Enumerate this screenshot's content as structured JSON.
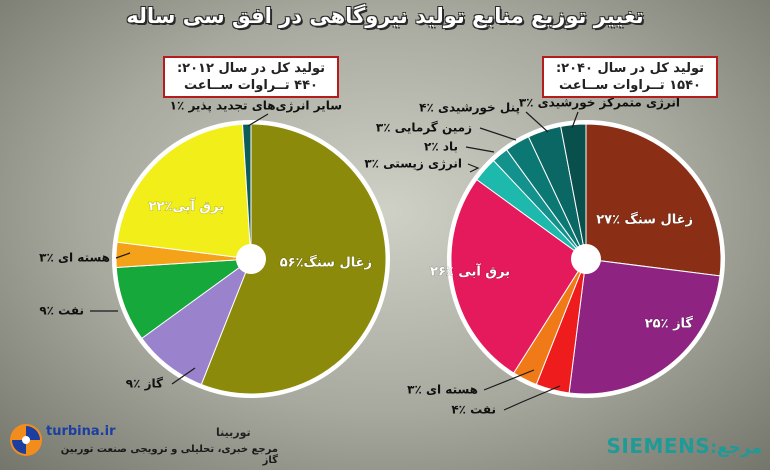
{
  "title": "تغییر توزیع منابع تولید نیروگاهی در افق سی ساله",
  "left_box": {
    "line1": "تولید کل در سال ۲۰۱۲:",
    "line2": "۴۴۰ تــراوات ســاعت"
  },
  "right_box": {
    "line1": "تولید کل در سال ۲۰۴۰:",
    "line2": "۱۵۴۰ تــراوات ســاعت"
  },
  "chart_data": [
    {
      "type": "pie",
      "year": "2012",
      "slices": [
        {
          "label": "زغال سنگ٪۵۶",
          "value": 56,
          "color": "#8c8a0b"
        },
        {
          "label": "گاز ٪۹",
          "value": 9,
          "color": "#9a82cc"
        },
        {
          "label": "نفت ٪۹",
          "value": 9,
          "color": "#16a83a"
        },
        {
          "label": "هسته ای ٪۳",
          "value": 3,
          "color": "#f5a21b"
        },
        {
          "label": "برق آبی٪۲۲",
          "value": 22,
          "color": "#f2ee1a"
        },
        {
          "label": "سایر انرژی‌های تجدید پذیر ٪۱",
          "value": 1,
          "color": "#0c5d5a"
        }
      ]
    },
    {
      "type": "pie",
      "year": "2040",
      "slices": [
        {
          "label": "زغال سنگ ٪۲۷",
          "value": 27,
          "color": "#8a2f16"
        },
        {
          "label": "گاز ٪۲۵",
          "value": 25,
          "color": "#8e2382"
        },
        {
          "label": "نفت ٪۴",
          "value": 4,
          "color": "#ee1c1c"
        },
        {
          "label": "هسته ای ٪۳",
          "value": 3,
          "color": "#f07a18"
        },
        {
          "label": "برق آبی ٪۲۶",
          "value": 26,
          "color": "#e41a5c"
        },
        {
          "label": "انرژی زیستی ٪۳",
          "value": 3,
          "color": "#1cb9ac"
        },
        {
          "label": "باد ٪۲",
          "value": 2,
          "color": "#13918c"
        },
        {
          "label": "زمین گرمایی ٪۳",
          "value": 3,
          "color": "#0b7874"
        },
        {
          "label": "پنل خورشیدی ٪۴",
          "value": 4,
          "color": "#0a6763"
        },
        {
          "label": "انرژی متمرکز خورشیدی ٪۳",
          "value": 3,
          "color": "#094f4c"
        }
      ]
    }
  ],
  "footer": {
    "brand": "turbina.ir",
    "brand_fa": "توربینا",
    "tagline": "مرجع خبری، تحلیلی و ترویجی صنعت توربین گاز",
    "source_label": ":مرجع",
    "source_name": "SIEMENS"
  }
}
